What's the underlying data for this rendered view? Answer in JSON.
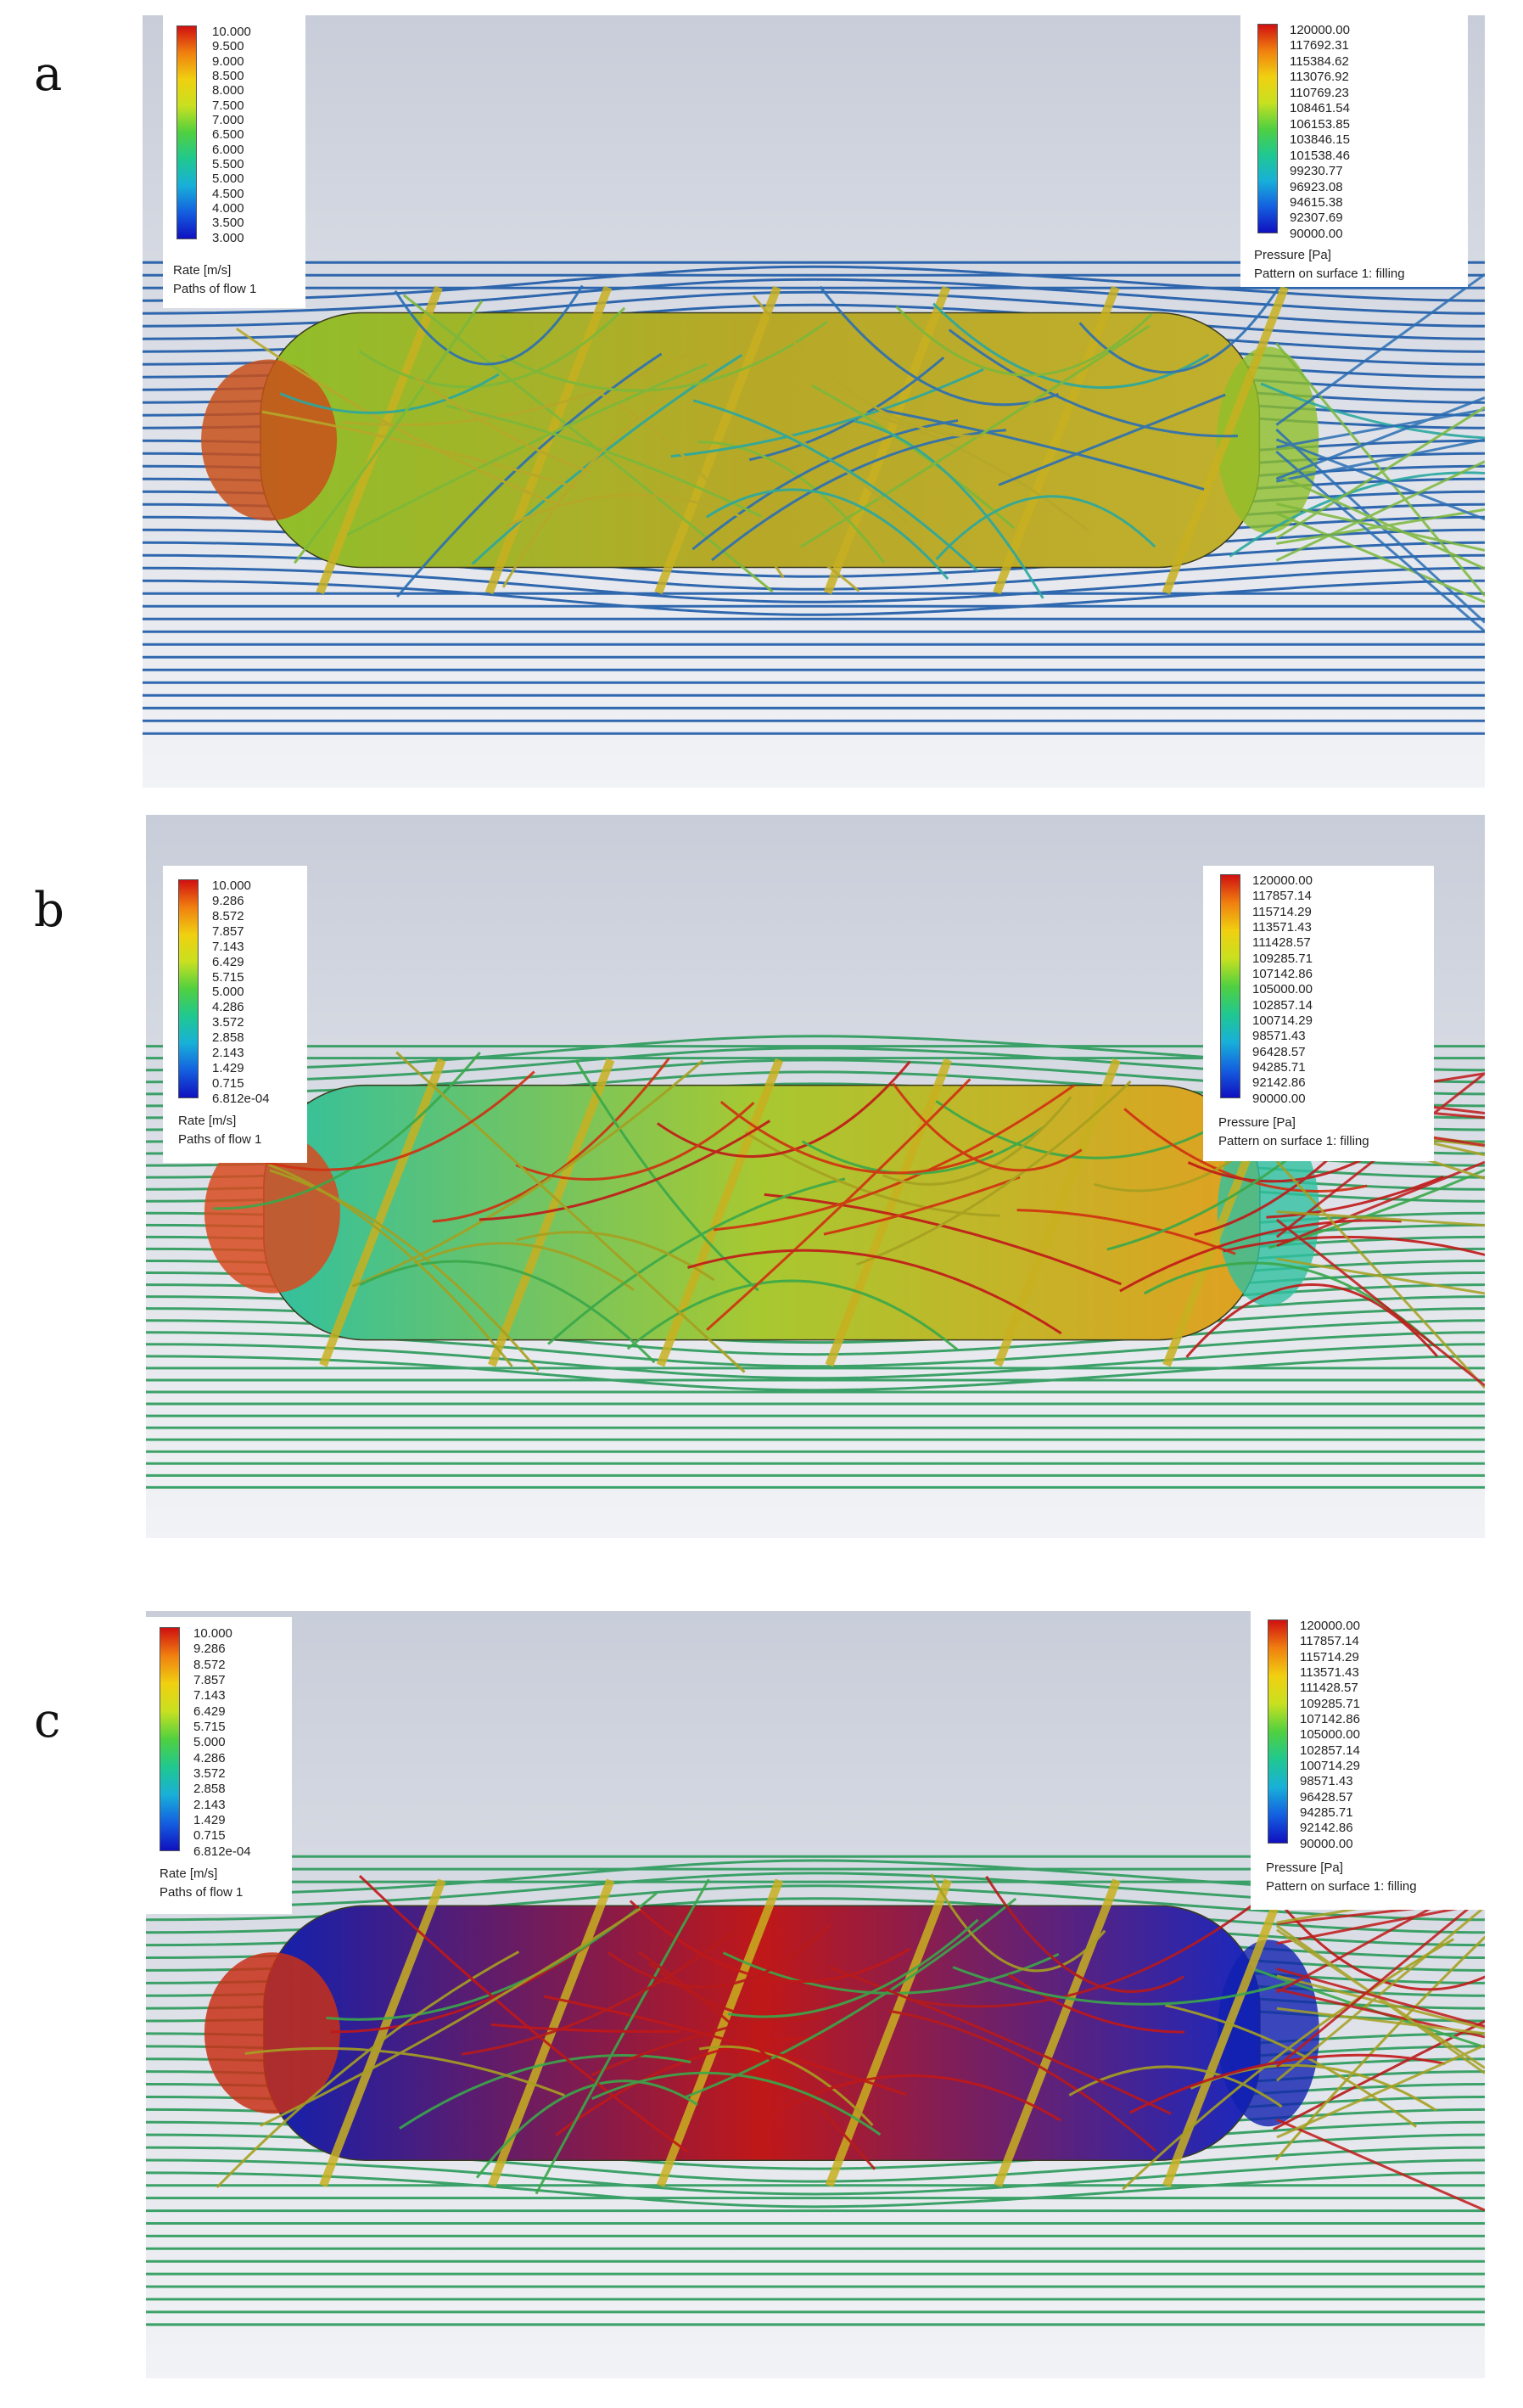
{
  "colors": {
    "scale": [
      "#1010c0",
      "#1460e0",
      "#18b0d8",
      "#20c890",
      "#50d040",
      "#c8e020",
      "#f0d010",
      "#f08010",
      "#d01010"
    ],
    "background_top": "#c8cdd9",
    "background_bottom": "#f2f3f6"
  },
  "panels": [
    {
      "label": "a",
      "rate_legend": {
        "ticks": [
          "10.000",
          "9.500",
          "9.000",
          "8.500",
          "8.000",
          "7.500",
          "7.000",
          "6.500",
          "6.000",
          "5.500",
          "5.000",
          "4.500",
          "4.000",
          "3.500",
          "3.000"
        ],
        "unit": "Rate [m/s]",
        "caption": "Paths of flow 1"
      },
      "pressure_legend": {
        "ticks": [
          "120000.00",
          "117692.31",
          "115384.62",
          "113076.92",
          "110769.23",
          "108461.54",
          "106153.85",
          "103846.15",
          "101538.46",
          "99230.77",
          "96923.08",
          "94615.38",
          "92307.69",
          "90000.00"
        ],
        "unit": "Pressure [Pa]",
        "caption": "Pattern on surface 1: filling"
      },
      "flow_color": "#1c5aa8",
      "swirl_colors": [
        "#2b6fb4",
        "#7bb83b",
        "#b6a82a",
        "#2aa8a0"
      ],
      "body_colors": [
        "#8fbf2a",
        "#b8a828",
        "#c0b02c"
      ],
      "cap_color": "#c8501a"
    },
    {
      "label": "b",
      "rate_legend": {
        "ticks": [
          "10.000",
          "9.286",
          "8.572",
          "7.857",
          "7.143",
          "6.429",
          "5.715",
          "5.000",
          "4.286",
          "3.572",
          "2.858",
          "2.143",
          "1.429",
          "0.715",
          "6.812e-04"
        ],
        "unit": "Rate [m/s]",
        "caption": "Paths of flow 1"
      },
      "pressure_legend": {
        "ticks": [
          "120000.00",
          "117857.14",
          "115714.29",
          "113571.43",
          "111428.57",
          "109285.71",
          "107142.86",
          "105000.00",
          "102857.14",
          "100714.29",
          "98571.43",
          "96428.57",
          "94285.71",
          "92142.86",
          "90000.00"
        ],
        "unit": "Pressure [Pa]",
        "caption": "Pattern on surface 1: filling"
      },
      "flow_color": "#2a9a5a",
      "swirl_colors": [
        "#c01818",
        "#a6a020",
        "#3aa84a",
        "#d03010"
      ],
      "body_colors": [
        "#30c0a0",
        "#a8c830",
        "#e0a020"
      ],
      "cap_color": "#d84a20"
    },
    {
      "label": "c",
      "rate_legend": {
        "ticks": [
          "10.000",
          "9.286",
          "8.572",
          "7.857",
          "7.143",
          "6.429",
          "5.715",
          "5.000",
          "4.286",
          "3.572",
          "2.858",
          "2.143",
          "1.429",
          "0.715",
          "6.812e-04"
        ],
        "unit": "Rate [m/s]",
        "caption": "Paths of flow 1"
      },
      "pressure_legend": {
        "ticks": [
          "120000.00",
          "117857.14",
          "115714.29",
          "113571.43",
          "111428.57",
          "109285.71",
          "107142.86",
          "105000.00",
          "102857.14",
          "100714.29",
          "98571.43",
          "96428.57",
          "94285.71",
          "92142.86",
          "90000.00"
        ],
        "unit": "Pressure [Pa]",
        "caption": "Pattern on surface 1: filling"
      },
      "flow_color": "#2a9a5a",
      "swirl_colors": [
        "#c01818",
        "#a6a020",
        "#3aa84a",
        "#b81a1a"
      ],
      "body_colors": [
        "#1020b0",
        "#c01818",
        "#1828c0"
      ],
      "cap_color": "#c83018"
    }
  ]
}
